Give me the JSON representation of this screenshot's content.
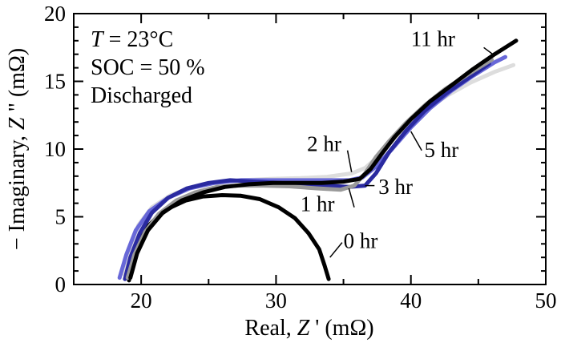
{
  "chart_data": {
    "type": "line",
    "title": "",
    "annotations": {
      "temperature": {
        "var": "T",
        "text": " = 23°C"
      },
      "soc": "SOC = 50 %",
      "state": "Discharged"
    },
    "xaxis": {
      "label_prefix": "Real, ",
      "label_var": "Z",
      "label_suffix": " ' (mΩ)",
      "lim": [
        15,
        50
      ],
      "ticks": [
        20,
        30,
        40,
        50
      ],
      "tick_labels": [
        "20",
        "30",
        "40",
        "50"
      ]
    },
    "yaxis": {
      "label_prefix": "− Imaginary, ",
      "label_var": "Z",
      "label_suffix": " \" (mΩ)",
      "lim": [
        0,
        20
      ],
      "ticks": [
        0,
        5,
        10,
        15,
        20
      ],
      "tick_labels": [
        "0",
        "5",
        "10",
        "15",
        "20"
      ]
    },
    "grid": false,
    "series": [
      {
        "name": "0 hr",
        "color": "#000000",
        "x": [
          19.1,
          19.3,
          19.7,
          20.3,
          21.2,
          22.2,
          23.3,
          24.6,
          26.0,
          27.4,
          28.8,
          30.2,
          31.4,
          32.4,
          33.2,
          33.6,
          33.9
        ],
        "y": [
          0.3,
          1.6,
          3.0,
          4.1,
          5.0,
          5.7,
          6.2,
          6.5,
          6.6,
          6.55,
          6.3,
          5.7,
          4.9,
          3.8,
          2.6,
          1.4,
          0.4
        ]
      },
      {
        "name": "1 hr",
        "color": "#999999",
        "x": [
          19.0,
          19.5,
          20.3,
          21.3,
          22.6,
          24.0,
          25.6,
          27.2,
          29.0,
          31.0,
          33.0,
          34.8,
          35.8,
          36.6,
          37.4,
          38.4,
          39.6,
          41.0,
          42.5,
          44.2,
          46.0
        ],
        "y": [
          0.5,
          2.2,
          3.9,
          5.2,
          6.2,
          6.8,
          7.2,
          7.3,
          7.3,
          7.25,
          7.1,
          7.0,
          7.3,
          8.2,
          9.4,
          10.6,
          11.9,
          13.2,
          14.4,
          15.5,
          16.6
        ]
      },
      {
        "name": "2 hr",
        "color": "#dddddd",
        "x": [
          18.7,
          19.1,
          19.8,
          20.8,
          22.2,
          23.8,
          25.5,
          27.5,
          29.6,
          31.8,
          33.8,
          35.6,
          36.6,
          37.4,
          38.4,
          39.6,
          41.0,
          42.6,
          44.4,
          46.2,
          47.6
        ],
        "y": [
          0.8,
          2.6,
          4.4,
          5.7,
          6.6,
          7.2,
          7.5,
          7.7,
          7.8,
          7.85,
          7.95,
          8.2,
          8.6,
          9.3,
          10.4,
          11.6,
          12.8,
          13.9,
          14.9,
          15.7,
          16.2
        ]
      },
      {
        "name": "3 hr",
        "color": "#2a2aa0",
        "x": [
          18.8,
          19.2,
          19.9,
          20.8,
          22.0,
          23.4,
          25.0,
          26.6,
          28.4,
          30.2,
          32.0,
          33.8,
          35.4,
          36.6,
          37.4,
          38.4,
          39.6,
          41.0,
          42.6,
          44.2,
          45.8
        ],
        "y": [
          0.4,
          2.0,
          3.8,
          5.3,
          6.4,
          7.1,
          7.5,
          7.7,
          7.6,
          7.5,
          7.4,
          7.3,
          7.2,
          7.3,
          8.2,
          9.8,
          11.3,
          12.8,
          14.1,
          15.2,
          16.3
        ]
      },
      {
        "name": "5 hr",
        "color": "#6868d8",
        "x": [
          18.4,
          18.9,
          19.6,
          20.6,
          22.0,
          23.6,
          25.4,
          27.4,
          29.4,
          31.6,
          33.6,
          35.4,
          36.4,
          37.4,
          38.6,
          40.0,
          41.4,
          43.0,
          44.6,
          46.2,
          47.0
        ],
        "y": [
          0.5,
          2.2,
          4.0,
          5.4,
          6.4,
          7.1,
          7.5,
          7.7,
          7.7,
          7.7,
          7.7,
          7.7,
          7.9,
          8.7,
          10.0,
          11.6,
          13.0,
          14.3,
          15.4,
          16.4,
          16.8
        ]
      },
      {
        "name": "11 hr",
        "color": "#000000",
        "x": [
          19.2,
          19.7,
          20.5,
          21.6,
          23.0,
          24.6,
          26.2,
          28.0,
          29.8,
          31.6,
          33.4,
          35.0,
          36.2,
          37.0,
          37.8,
          38.8,
          40.0,
          41.4,
          43.0,
          44.6,
          46.2,
          47.8
        ],
        "y": [
          0.5,
          2.3,
          4.0,
          5.3,
          6.2,
          6.8,
          7.2,
          7.4,
          7.5,
          7.5,
          7.5,
          7.6,
          7.8,
          8.5,
          9.6,
          10.9,
          12.2,
          13.5,
          14.7,
          15.9,
          17.0,
          18.0
        ]
      }
    ],
    "curve_labels": [
      {
        "text": "11 hr",
        "x": 40.0,
        "y": 17.6,
        "tx": 45.4,
        "ty": 17.5,
        "lx": 46.2,
        "ly": 16.9
      },
      {
        "text": "2 hr",
        "x": 32.3,
        "y": 9.85,
        "tx": 35.3,
        "ty": 9.9,
        "lx": 35.6,
        "ly": 8.3
      },
      {
        "text": "5 hr",
        "x": 41.0,
        "y": 9.4,
        "tx": 40.8,
        "ty": 9.9,
        "lx": 40.0,
        "ly": 11.3
      },
      {
        "text": "3 hr",
        "x": 37.6,
        "y": 6.7,
        "tx": 37.3,
        "ty": 7.3,
        "lx": 36.6,
        "ly": 7.3
      },
      {
        "text": "1 hr",
        "x": 31.8,
        "y": 5.4,
        "tx": 35.8,
        "ty": 5.7,
        "lx": 35.4,
        "ly": 7.1
      },
      {
        "text": "0 hr",
        "x": 35.0,
        "y": 2.7,
        "tx": 34.9,
        "ty": 3.1,
        "lx": 34.0,
        "ly": 2.0
      }
    ]
  }
}
